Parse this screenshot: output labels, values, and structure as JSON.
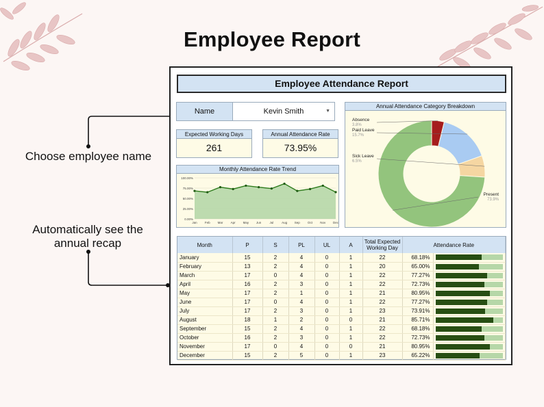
{
  "page": {
    "title": "Employee Report"
  },
  "annotations": {
    "choose_name": "Choose employee name",
    "recap": "Automatically see the annual recap"
  },
  "report": {
    "title": "Employee Attendance Report",
    "name_label": "Name",
    "employee_name": "Kevin Smith",
    "kpis": {
      "expected_label": "Expected Working Days",
      "expected_value": "261",
      "rate_label": "Annual Attendance Rate",
      "rate_value": "73.95%"
    }
  },
  "colors": {
    "header_fill": "#d3e3f3",
    "cell_fill": "#fefbe6",
    "bar_dark": "#274e13",
    "bar_light": "#b6d7a8",
    "line_green": "#2f7d1e"
  },
  "trend_chart": {
    "title": "Monthly Attendance Rate Trend",
    "y_ticks": [
      "100.00%",
      "75.00%",
      "50.00%",
      "25.00%",
      "0.00%"
    ],
    "x_ticks": [
      "Jan",
      "Feb",
      "Mar",
      "Apr",
      "May",
      "Jun",
      "Jul",
      "Aug",
      "Sep",
      "Oct",
      "Nov",
      "Dec"
    ],
    "values": [
      68.18,
      65.0,
      77.27,
      72.73,
      80.95,
      77.27,
      73.91,
      85.71,
      68.18,
      72.73,
      80.95,
      65.22
    ],
    "ylim": [
      0,
      100
    ]
  },
  "chart_data": {
    "type": "pie",
    "title": "Annual Attendance Category Breakdown",
    "categories": [
      "Absence",
      "Paid Leave",
      "Sick Leave",
      "Present"
    ],
    "percent_labels": [
      "3.8%",
      "15.7%",
      "6.5%",
      "73.9%"
    ],
    "values": [
      3.8,
      15.7,
      6.5,
      73.9
    ],
    "colors": [
      "#a51d1d",
      "#a9cbf2",
      "#f5d6a2",
      "#93c47d"
    ]
  },
  "table": {
    "headers": [
      "Month",
      "P",
      "S",
      "PL",
      "UL",
      "A",
      "Total Expected Working Day",
      "Attendance Rate"
    ],
    "rows": [
      [
        "January",
        "15",
        "2",
        "4",
        "0",
        "1",
        "22",
        "68.18%"
      ],
      [
        "February",
        "13",
        "2",
        "4",
        "0",
        "1",
        "20",
        "65.00%"
      ],
      [
        "March",
        "17",
        "0",
        "4",
        "0",
        "1",
        "22",
        "77.27%"
      ],
      [
        "April",
        "16",
        "2",
        "3",
        "0",
        "1",
        "22",
        "72.73%"
      ],
      [
        "May",
        "17",
        "2",
        "1",
        "0",
        "1",
        "21",
        "80.95%"
      ],
      [
        "June",
        "17",
        "0",
        "4",
        "0",
        "1",
        "22",
        "77.27%"
      ],
      [
        "July",
        "17",
        "2",
        "3",
        "0",
        "1",
        "23",
        "73.91%"
      ],
      [
        "August",
        "18",
        "1",
        "2",
        "0",
        "0",
        "21",
        "85.71%"
      ],
      [
        "September",
        "15",
        "2",
        "4",
        "0",
        "1",
        "22",
        "68.18%"
      ],
      [
        "October",
        "16",
        "2",
        "3",
        "0",
        "1",
        "22",
        "72.73%"
      ],
      [
        "November",
        "17",
        "0",
        "4",
        "0",
        "0",
        "21",
        "80.95%"
      ],
      [
        "December",
        "15",
        "2",
        "5",
        "0",
        "1",
        "23",
        "65.22%"
      ]
    ],
    "rate_values": [
      0.6818,
      0.65,
      0.7727,
      0.7273,
      0.8095,
      0.7727,
      0.7391,
      0.8571,
      0.6818,
      0.7273,
      0.8095,
      0.6522
    ]
  }
}
